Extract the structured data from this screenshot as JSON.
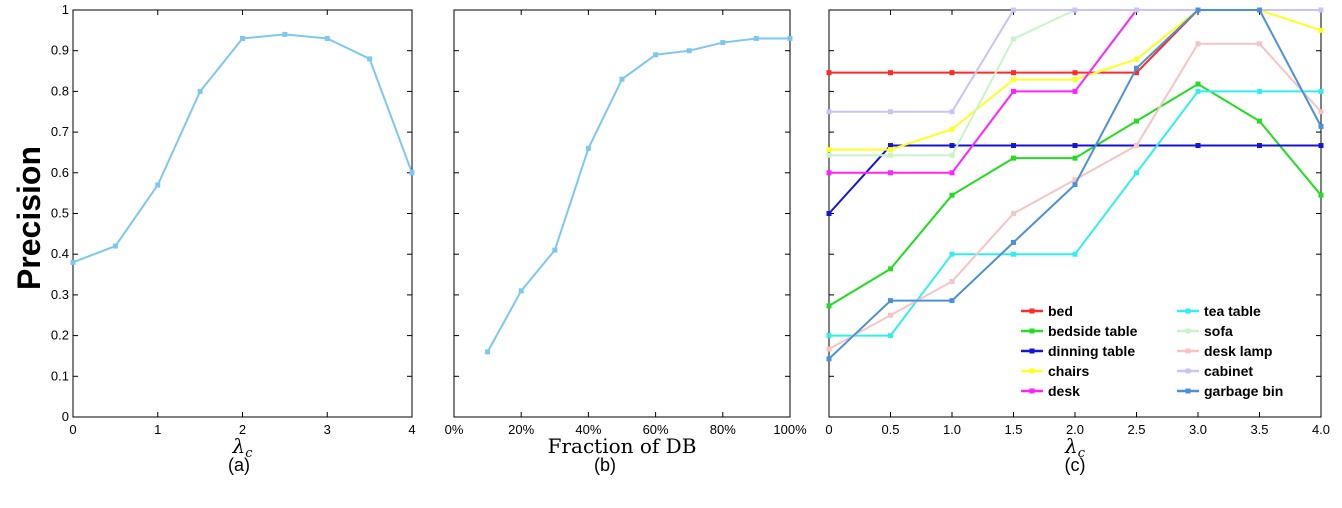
{
  "figure": {
    "ylabel": "Precision",
    "panels": [
      {
        "label": "(a)",
        "xlabel": "λc"
      },
      {
        "label": "(b)",
        "xlabel": "Fraction of DB"
      },
      {
        "label": "(c)",
        "xlabel": "λc"
      }
    ]
  },
  "chart_data": [
    {
      "type": "line",
      "panel": "a",
      "xlabel": "λc",
      "ylabel": "Precision",
      "xlim": [
        0,
        4
      ],
      "ylim": [
        0,
        1
      ],
      "xticks": [
        0,
        1,
        2,
        3,
        4
      ],
      "xtick_labels": [
        "0",
        "1",
        "2",
        "3",
        "4"
      ],
      "yticks": [
        0,
        0.1,
        0.2,
        0.3,
        0.4,
        0.5,
        0.6,
        0.7,
        0.8,
        0.9,
        1
      ],
      "ytick_labels": [
        "0",
        "0.1",
        "0.2",
        "0.3",
        "0.4",
        "0.5",
        "0.6",
        "0.7",
        "0.8",
        "0.9",
        "1"
      ],
      "series": [
        {
          "color": "#7ec8f0",
          "x": [
            0,
            0.5,
            1,
            1.5,
            2,
            2.5,
            3,
            3.5,
            4
          ],
          "y": [
            0.38,
            0.42,
            0.57,
            0.8,
            0.93,
            0.94,
            0.93,
            0.88,
            0.6
          ]
        }
      ]
    },
    {
      "type": "line",
      "panel": "b",
      "xlabel": "Fraction of DB",
      "xlim": [
        0,
        100
      ],
      "ylim": [
        0,
        1
      ],
      "xticks": [
        0,
        20,
        40,
        60,
        80,
        100
      ],
      "xtick_labels": [
        "0%",
        "20%",
        "40%",
        "60%",
        "80%",
        "100%"
      ],
      "yticks": [
        0,
        0.1,
        0.2,
        0.3,
        0.4,
        0.5,
        0.6,
        0.7,
        0.8,
        0.9,
        1
      ],
      "series": [
        {
          "color": "#7ec8f0",
          "x": [
            10,
            20,
            30,
            40,
            50,
            60,
            70,
            80,
            90,
            100
          ],
          "y": [
            0.16,
            0.31,
            0.41,
            0.66,
            0.83,
            0.89,
            0.9,
            0.92,
            0.93,
            0.93
          ]
        }
      ]
    },
    {
      "type": "line",
      "panel": "c",
      "xlabel": "λc",
      "xlim": [
        0,
        4
      ],
      "ylim": [
        0,
        1
      ],
      "xticks": [
        0,
        0.5,
        1,
        1.5,
        2,
        2.5,
        3,
        3.5,
        4
      ],
      "xtick_labels": [
        "0",
        "0.5",
        "1.0",
        "1.5",
        "2.0",
        "2.5",
        "3.0",
        "3.5",
        "4.0"
      ],
      "yticks": [
        0,
        0.1,
        0.2,
        0.3,
        0.4,
        0.5,
        0.6,
        0.7,
        0.8,
        0.9,
        1
      ],
      "legend": "lower-right",
      "x": [
        0,
        0.5,
        1,
        1.5,
        2,
        2.5,
        3,
        3.5,
        4
      ],
      "series": [
        {
          "name": "bed",
          "color": "#ff2a2a",
          "y": [
            0.846,
            0.846,
            0.846,
            0.846,
            0.846,
            0.846,
            1.0,
            1.0,
            1.0
          ]
        },
        {
          "name": "bedside table",
          "color": "#22dd22",
          "y": [
            0.273,
            0.364,
            0.545,
            0.636,
            0.636,
            0.727,
            0.818,
            0.727,
            0.545
          ]
        },
        {
          "name": "dinning table",
          "color": "#1414d2",
          "y": [
            0.5,
            0.667,
            0.667,
            0.667,
            0.667,
            0.667,
            0.667,
            0.667,
            0.667
          ]
        },
        {
          "name": "chairs",
          "color": "#ffff22",
          "y": [
            0.657,
            0.657,
            0.707,
            0.829,
            0.829,
            0.879,
            1.0,
            1.0,
            0.95
          ]
        },
        {
          "name": "desk",
          "color": "#ff22ff",
          "y": [
            0.6,
            0.6,
            0.6,
            0.8,
            0.8,
            1.0,
            1.0,
            1.0,
            1.0
          ]
        },
        {
          "name": "tea table",
          "color": "#33eeee",
          "y": [
            0.2,
            0.2,
            0.4,
            0.4,
            0.4,
            0.6,
            0.8,
            0.8,
            0.8
          ]
        },
        {
          "name": "sofa",
          "color": "#c8f5c8",
          "y": [
            0.643,
            0.643,
            0.643,
            0.929,
            1.0,
            1.0,
            1.0,
            1.0,
            1.0
          ]
        },
        {
          "name": "desk lamp",
          "color": "#f7c4c4",
          "y": [
            0.167,
            0.25,
            0.333,
            0.5,
            0.583,
            0.667,
            0.917,
            0.917,
            0.75
          ]
        },
        {
          "name": "cabinet",
          "color": "#c8c4f5",
          "y": [
            0.75,
            0.75,
            0.75,
            1.0,
            1.0,
            1.0,
            1.0,
            1.0,
            1.0
          ]
        },
        {
          "name": "garbage bin",
          "color": "#4d90d8",
          "y": [
            0.143,
            0.286,
            0.286,
            0.429,
            0.571,
            0.857,
            1.0,
            1.0,
            0.714
          ]
        }
      ]
    }
  ]
}
